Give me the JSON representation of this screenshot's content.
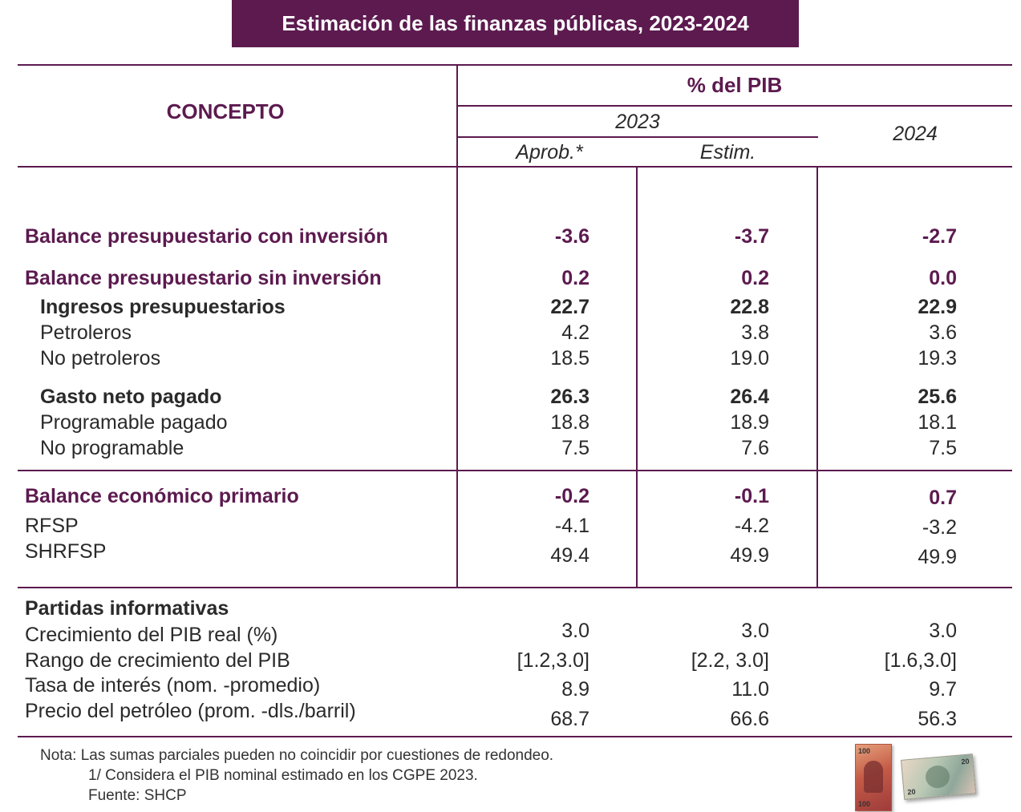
{
  "title": "Estimación de las finanzas públicas, 2023-2024",
  "header": {
    "concepto": "CONCEPTO",
    "pct_pib": "% del PIB",
    "year_2023": "2023",
    "year_2024": "2024",
    "aprob": "Aprob.*",
    "estim": "Estim."
  },
  "rows": [
    {
      "label": "Balance presupuestario con inversión",
      "v1": "-3.6",
      "v2": "-3.7",
      "v3": "-2.7"
    },
    {
      "label": "Balance presupuestario sin inversión",
      "v1": "0.2",
      "v2": "0.2",
      "v3": "0.0"
    },
    {
      "label": "Ingresos presupuestarios",
      "v1": "22.7",
      "v2": "22.8",
      "v3": "22.9"
    },
    {
      "label": "Petroleros",
      "v1": "4.2",
      "v2": "3.8",
      "v3": "3.6"
    },
    {
      "label": "No petroleros",
      "v1": "18.5",
      "v2": "19.0",
      "v3": "19.3"
    },
    {
      "label": "Gasto neto pagado",
      "v1": "26.3",
      "v2": "26.4",
      "v3": "25.6"
    },
    {
      "label": "Programable pagado",
      "v1": "18.8",
      "v2": "18.9",
      "v3": "18.1"
    },
    {
      "label": "No programable",
      "v1": "7.5",
      "v2": "7.6",
      "v3": "7.5"
    },
    {
      "label": "Balance económico primario",
      "v1": "-0.2",
      "v2": "-0.1",
      "v3": "0.7"
    },
    {
      "label": "RFSP",
      "v1": "-4.1",
      "v2": "-4.2",
      "v3": "-3.2"
    },
    {
      "label": "SHRFSP",
      "v1": "49.4",
      "v2": "49.9",
      "v3": "49.9"
    }
  ],
  "partidas": {
    "heading": "Partidas informativas",
    "rows": [
      {
        "label": "Crecimiento del PIB real (%)",
        "v1": "3.0",
        "v2": "3.0",
        "v3": "3.0"
      },
      {
        "label": "Rango de crecimiento del PIB",
        "v1": "[1.2,3.0]",
        "v2": "[2.2, 3.0]",
        "v3": "[1.6,3.0]"
      },
      {
        "label": "Tasa de interés (nom. -promedio)",
        "v1": "8.9",
        "v2": "11.0",
        "v3": "9.7"
      },
      {
        "label": "Precio del petróleo (prom. -dls./barril)",
        "v1": "68.7",
        "v2": "66.6",
        "v3": "56.3"
      }
    ]
  },
  "notes": {
    "nota": "Nota: Las sumas parciales pueden no coincidir por cuestiones de redondeo.",
    "footnote": "1/ Considera el PIB nominal estimado en los CGPE 2023.",
    "fuente": "Fuente: SHCP"
  },
  "colors": {
    "accent": "#5c1a4f",
    "text": "#2a2a2a"
  },
  "bills": {
    "bill1_value": "100",
    "bill2_value": "20"
  }
}
